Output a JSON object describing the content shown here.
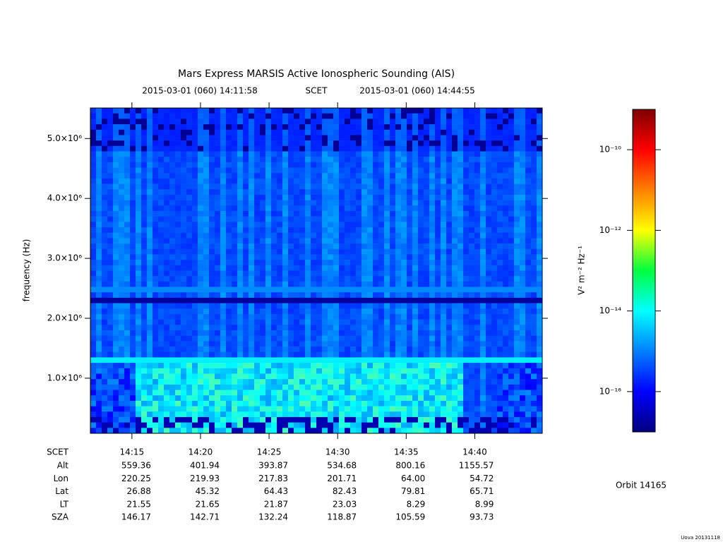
{
  "chart_data": {
    "type": "spectrogram",
    "title": "Mars Express MARSIS Active Ionospheric Sounding (AIS)",
    "start_time": "2015-03-01 (060) 14:11:58",
    "time_system": "SCET",
    "end_time": "2015-03-01 (060) 14:44:55",
    "ylabel": "frequency (Hz)",
    "ylim": [
      80000,
      5510000
    ],
    "yticks": [
      {
        "value": 1000000,
        "label": "1.0×10⁶"
      },
      {
        "value": 2000000,
        "label": "2.0×10⁶"
      },
      {
        "value": 3000000,
        "label": "3.0×10⁶"
      },
      {
        "value": 4000000,
        "label": "4.0×10⁶"
      },
      {
        "value": 5000000,
        "label": "5.0×10⁶"
      }
    ],
    "xlim": [
      851.97,
      884.92
    ],
    "xticks": [
      {
        "value": 855,
        "label": "14:15"
      },
      {
        "value": 860,
        "label": "14:20"
      },
      {
        "value": 865,
        "label": "14:25"
      },
      {
        "value": 870,
        "label": "14:30"
      },
      {
        "value": 875,
        "label": "14:35"
      },
      {
        "value": 880,
        "label": "14:40"
      }
    ],
    "colorbar_label": "V² m⁻² Hz⁻¹",
    "clim": [
      1e-17,
      1e-09
    ],
    "colorbar_log": true,
    "cticks": [
      {
        "value": 1e-10,
        "label": "10⁻¹⁰"
      },
      {
        "value": 1e-12,
        "label": "10⁻¹²"
      },
      {
        "value": 1e-14,
        "label": "10⁻¹⁴"
      },
      {
        "value": 1e-16,
        "label": "10⁻¹⁶"
      }
    ],
    "ephemeris_header": "SCET",
    "ephemeris": [
      {
        "label": "Alt",
        "values": [
          "559.36",
          "401.94",
          "393.87",
          "534.68",
          "800.16",
          "1155.57"
        ]
      },
      {
        "label": "Lon",
        "values": [
          "220.25",
          "219.93",
          "217.83",
          "201.71",
          "64.00",
          "54.72"
        ]
      },
      {
        "label": "Lat",
        "values": [
          "26.88",
          "45.32",
          "64.43",
          "82.43",
          "79.81",
          "65.71"
        ]
      },
      {
        "label": "LT",
        "values": [
          "21.55",
          "21.65",
          "21.87",
          "23.03",
          "8.29",
          "8.99"
        ]
      },
      {
        "label": "SZA",
        "values": [
          "146.17",
          "142.71",
          "132.24",
          "118.87",
          "105.59",
          "93.73"
        ]
      }
    ],
    "orbit": "Orbit 14165",
    "footer": "Uova 20131118"
  }
}
